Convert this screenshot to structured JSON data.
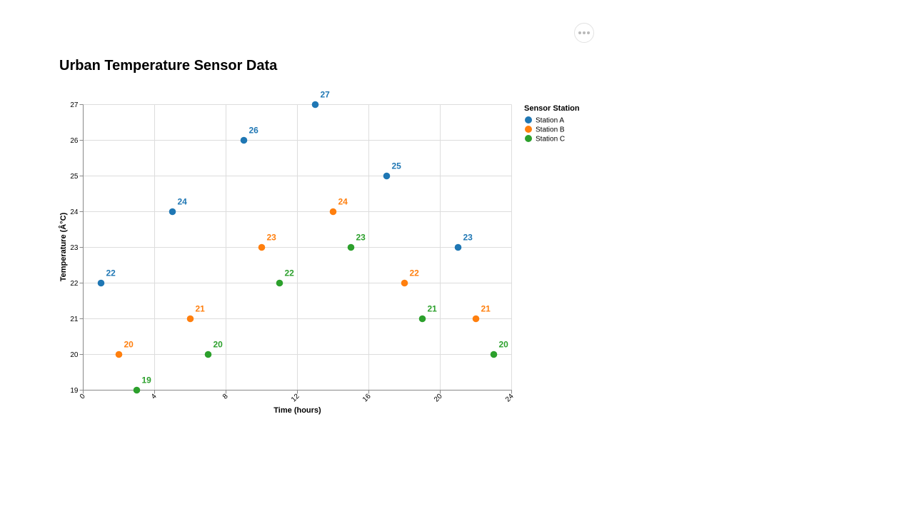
{
  "actions_menu": {
    "icon": "more-horizontal-icon"
  },
  "chart_data": {
    "type": "scatter",
    "title": "Urban Temperature Sensor Data",
    "xlabel": "Time (hours)",
    "ylabel": "Temperature (Â°C)",
    "xlim": [
      0,
      24
    ],
    "ylim": [
      19,
      27
    ],
    "x_ticks": [
      "0",
      "4",
      "8",
      "12",
      "16",
      "20",
      "24"
    ],
    "y_ticks": [
      "19",
      "20",
      "21",
      "22",
      "23",
      "24",
      "25",
      "26",
      "27"
    ],
    "grid": true,
    "legend": {
      "title": "Sensor Station",
      "position": "right"
    },
    "series": [
      {
        "name": "Station A",
        "color": "#1f77b4",
        "points": [
          {
            "x": 1,
            "y": 22
          },
          {
            "x": 5,
            "y": 24
          },
          {
            "x": 9,
            "y": 26
          },
          {
            "x": 13,
            "y": 27
          },
          {
            "x": 17,
            "y": 25
          },
          {
            "x": 21,
            "y": 23
          }
        ]
      },
      {
        "name": "Station B",
        "color": "#ff7f0e",
        "points": [
          {
            "x": 2,
            "y": 20
          },
          {
            "x": 6,
            "y": 21
          },
          {
            "x": 10,
            "y": 23
          },
          {
            "x": 14,
            "y": 24
          },
          {
            "x": 18,
            "y": 22
          },
          {
            "x": 22,
            "y": 21
          }
        ]
      },
      {
        "name": "Station C",
        "color": "#2ca02c",
        "points": [
          {
            "x": 3,
            "y": 19
          },
          {
            "x": 7,
            "y": 20
          },
          {
            "x": 11,
            "y": 22
          },
          {
            "x": 15,
            "y": 23
          },
          {
            "x": 19,
            "y": 21
          },
          {
            "x": 23,
            "y": 20
          }
        ]
      }
    ]
  }
}
